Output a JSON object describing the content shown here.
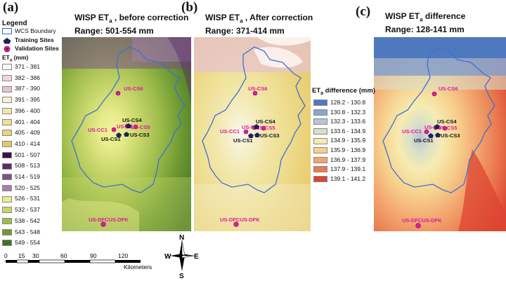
{
  "legend": {
    "title": "Legend",
    "boundary_label": "WCS Boundary",
    "training_label": "Training Sites",
    "validation_label": "Validation Sites",
    "et_heading": "ET",
    "et_sub": "a",
    "et_unit": " (mm)",
    "classes": [
      {
        "label": "371 - 381",
        "color": "#fdf6f2"
      },
      {
        "label": "382 - 386",
        "color": "#efd6de"
      },
      {
        "label": "387 - 390",
        "color": "#e6c3cf"
      },
      {
        "label": "391 - 395",
        "color": "#f6f1cf"
      },
      {
        "label": "396 - 400",
        "color": "#f2e7aa"
      },
      {
        "label": "401 - 404",
        "color": "#efdf93"
      },
      {
        "label": "405 - 409",
        "color": "#ebd37b"
      },
      {
        "label": "410 - 414",
        "color": "#e7c766"
      },
      {
        "label": "501 - 507",
        "color": "#3b1145"
      },
      {
        "label": "508 - 513",
        "color": "#5e2a68"
      },
      {
        "label": "514 - 519",
        "color": "#7e4f8c"
      },
      {
        "label": "520 - 525",
        "color": "#a680ad"
      },
      {
        "label": "526 - 531",
        "color": "#e7ec8c"
      },
      {
        "label": "532 - 537",
        "color": "#c6d66a"
      },
      {
        "label": "538 - 542",
        "color": "#9fbd4c"
      },
      {
        "label": "543 - 548",
        "color": "#6f9a32"
      },
      {
        "label": "549 - 554",
        "color": "#3f7224"
      }
    ]
  },
  "panels": [
    {
      "letter": "(a)",
      "title_pre": "WISP ET",
      "title_sub": "a",
      "title_post": " , before correction",
      "range": "Range: 501-554 mm"
    },
    {
      "letter": "(b)",
      "title_pre": "WISP ET",
      "title_sub": "a",
      "title_post": " , After correction",
      "range": "Range: 371-414 mm"
    },
    {
      "letter": "(c)",
      "title_pre": "WISP ET",
      "title_sub": "a",
      "title_post": " difference",
      "range": "Range: 128-141 mm"
    }
  ],
  "diff_legend": {
    "heading_pre": "ET",
    "heading_sub": "a",
    "heading_post": " difference (mm)",
    "classes": [
      {
        "label": "128.2 - 130.8",
        "color": "#4f79bf"
      },
      {
        "label": "130.8 - 132.3",
        "color": "#8aa5cf"
      },
      {
        "label": "132.3 - 133.6",
        "color": "#b7c5d6"
      },
      {
        "label": "133.6 - 134.9",
        "color": "#d9dfc9"
      },
      {
        "label": "134.9 - 135.9",
        "color": "#f6ecb2"
      },
      {
        "label": "135.9 - 136.9",
        "color": "#f6cf8c"
      },
      {
        "label": "136.9 - 137.9",
        "color": "#f2a66e"
      },
      {
        "label": "137.9 - 139.1",
        "color": "#ea7a4f"
      },
      {
        "label": "139.1 - 141.2",
        "color": "#dd4432"
      }
    ]
  },
  "sites": {
    "cs6": "US-CS6",
    "cs4": "US-CS4",
    "cs3": "US-CS3",
    "cs1": "US-CS1",
    "cc1": "US-CC1",
    "cs5": "US-CS5",
    "cs_a": "US-CS",
    "dfk": "US-DFCUS-DFK"
  },
  "scale": {
    "ticks": [
      "0",
      "15",
      "30",
      "60",
      "90",
      "120"
    ],
    "unit": "Kilometers"
  },
  "compass": {
    "n": "N",
    "s": "S",
    "e": "E",
    "w": "W"
  }
}
